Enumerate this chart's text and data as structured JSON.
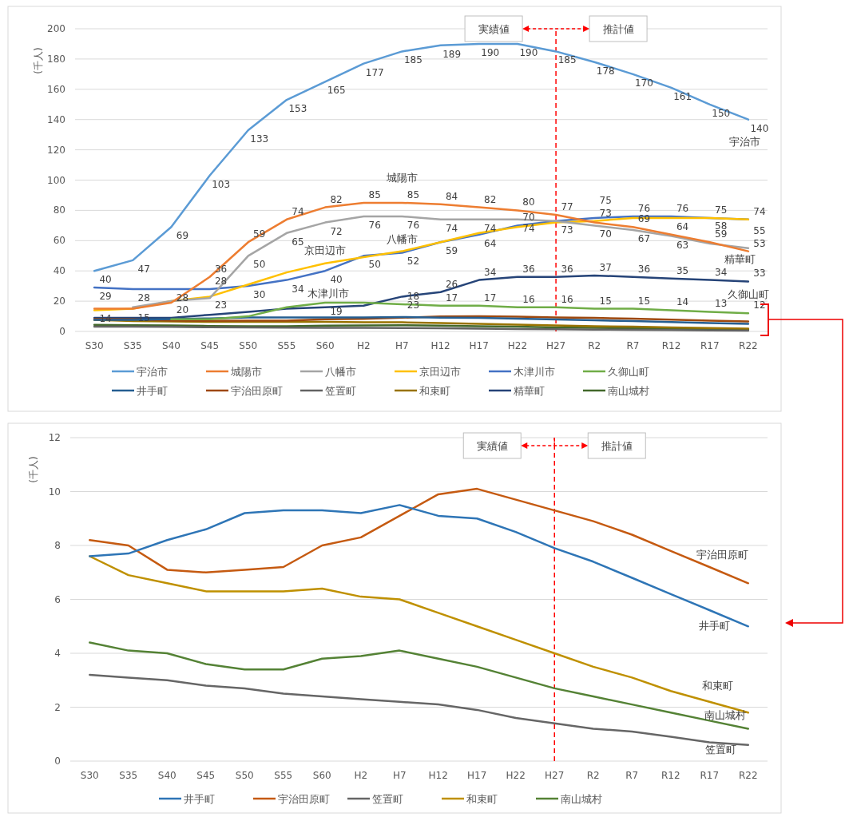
{
  "chart_data": [
    {
      "type": "line",
      "ylabel": "(千人)",
      "categories": [
        "S30",
        "S35",
        "S40",
        "S45",
        "S50",
        "S55",
        "S60",
        "H2",
        "H7",
        "H12",
        "H17",
        "H22",
        "H27",
        "R2",
        "R7",
        "R12",
        "R17",
        "R22"
      ],
      "ylim": [
        0,
        200
      ],
      "yticks": [
        0,
        20,
        40,
        60,
        80,
        100,
        120,
        140,
        160,
        180,
        200
      ],
      "grid": "y",
      "legend": "bottom",
      "marker": "none",
      "line_style": "solid",
      "series": [
        {
          "name": "宇治市",
          "color": "#5b9bd5",
          "values": [
            40,
            47,
            69,
            103,
            133,
            153,
            165,
            177,
            185,
            189,
            190,
            190,
            185,
            178,
            170,
            161,
            150,
            140
          ],
          "value_labels": [
            "40",
            "47",
            "69",
            "103",
            "133",
            "153",
            "165",
            "177",
            "185",
            "189",
            "190",
            "190",
            "185",
            "178",
            "170",
            "161",
            "150",
            "140"
          ]
        },
        {
          "name": "城陽市",
          "color": "#ed7d31",
          "values": [
            15,
            15,
            19,
            36,
            59,
            74,
            82,
            85,
            85,
            84,
            82,
            80,
            77,
            72,
            69,
            64,
            59,
            53
          ],
          "value_labels": [
            null,
            null,
            null,
            "36",
            "59",
            "74",
            "82",
            "85",
            "85",
            "84",
            "82",
            "80",
            "77",
            null,
            "69",
            "64",
            "59",
            "53"
          ]
        },
        {
          "name": "八幡市",
          "color": "#a5a5a5",
          "values": [
            null,
            16,
            20,
            22,
            50,
            65,
            72,
            76,
            76,
            74,
            74,
            74,
            73,
            70,
            67,
            63,
            58,
            55
          ],
          "value_labels": [
            null,
            null,
            null,
            null,
            "50",
            "65",
            "72",
            "76",
            "76",
            "74",
            "74",
            "74",
            null,
            "70",
            "67",
            "63",
            "58",
            "55"
          ]
        },
        {
          "name": "京田辺市",
          "color": "#ffc000",
          "values": [
            14,
            15,
            20,
            23,
            31,
            39,
            45,
            49,
            53,
            59,
            65,
            69,
            72,
            73,
            75,
            75,
            75,
            74
          ],
          "value_labels": [
            "14",
            "15",
            "20",
            "23",
            null,
            null,
            null,
            null,
            null,
            null,
            null,
            null,
            null,
            "73",
            null,
            null,
            null,
            null
          ]
        },
        {
          "name": "木津川市",
          "color": "#4472c4",
          "values": [
            29,
            28,
            28,
            28,
            30,
            34,
            40,
            50,
            52,
            59,
            64,
            70,
            73,
            75,
            76,
            76,
            75,
            74
          ],
          "value_labels": [
            "29",
            "28",
            "28",
            "28",
            "30",
            "34",
            "40",
            "50",
            "52",
            "59",
            "64",
            "70",
            "73",
            "75",
            "76",
            "76",
            "75",
            "74"
          ]
        },
        {
          "name": "久御山町",
          "color": "#70ad47",
          "values": [
            null,
            null,
            8,
            8,
            10,
            16,
            19,
            19,
            18,
            17,
            17,
            16,
            16,
            15,
            15,
            14,
            13,
            12
          ],
          "value_labels": [
            null,
            null,
            null,
            null,
            null,
            null,
            "19",
            null,
            "18",
            "17",
            "17",
            "16",
            "16",
            "15",
            "15",
            "14",
            "13",
            "12"
          ]
        },
        {
          "name": "井手町",
          "color": "#255e91",
          "values": [
            7.6,
            7.7,
            8.2,
            8.6,
            9.2,
            9.3,
            9.3,
            9.2,
            9.5,
            9.1,
            9.0,
            8.5,
            7.9,
            7.4,
            6.8,
            6.2,
            5.6,
            5.0
          ]
        },
        {
          "name": "宇治田原町",
          "color": "#9e480e",
          "values": [
            8.2,
            8.0,
            7.1,
            7.0,
            7.1,
            7.2,
            8.0,
            8.3,
            9.1,
            9.9,
            10.1,
            9.7,
            9.3,
            8.9,
            8.4,
            7.8,
            7.2,
            6.6
          ]
        },
        {
          "name": "笠置町",
          "color": "#636363",
          "values": [
            3.2,
            3.1,
            3.0,
            2.8,
            2.7,
            2.5,
            2.4,
            2.3,
            2.2,
            2.1,
            1.9,
            1.6,
            1.4,
            1.2,
            1.1,
            0.9,
            0.7,
            0.6
          ]
        },
        {
          "name": "和束町",
          "color": "#997300",
          "values": [
            7.6,
            6.9,
            6.6,
            6.3,
            6.3,
            6.3,
            6.4,
            6.1,
            6.0,
            5.5,
            5.0,
            4.5,
            4.0,
            3.5,
            3.1,
            2.6,
            2.2,
            1.8
          ]
        },
        {
          "name": "精華町",
          "color": "#264478",
          "values": [
            9,
            9,
            9,
            11,
            13,
            15,
            16,
            17,
            23,
            26,
            34,
            36,
            36,
            37,
            36,
            35,
            34,
            33
          ],
          "value_labels": [
            null,
            null,
            null,
            null,
            null,
            null,
            null,
            null,
            "23",
            "26",
            "34",
            "36",
            "36",
            "37",
            "36",
            "35",
            "34",
            "33"
          ]
        },
        {
          "name": "南山城村",
          "color": "#43682b",
          "values": [
            4.4,
            4.1,
            4.0,
            3.6,
            3.4,
            3.4,
            3.8,
            3.9,
            4.1,
            3.8,
            3.5,
            3.1,
            2.7,
            2.4,
            2.1,
            1.8,
            1.5,
            1.2
          ]
        }
      ],
      "ref_lines": [
        {
          "axis": "x",
          "value": "H27",
          "color": "#ff0000",
          "line_style": "dashed"
        }
      ],
      "annotations": [
        "実績値",
        "推計値"
      ]
    },
    {
      "type": "line",
      "ylabel": "(千人)",
      "categories": [
        "S30",
        "S35",
        "S40",
        "S45",
        "S50",
        "S55",
        "S60",
        "H2",
        "H7",
        "H12",
        "H17",
        "H22",
        "H27",
        "R2",
        "R7",
        "R12",
        "R17",
        "R22"
      ],
      "ylim": [
        0,
        12
      ],
      "yticks": [
        0,
        2,
        4,
        6,
        8,
        10,
        12
      ],
      "grid": "y",
      "legend": "bottom",
      "marker": "none",
      "line_style": "solid",
      "series": [
        {
          "name": "井手町",
          "color": "#2e75b6",
          "values": [
            7.6,
            7.7,
            8.2,
            8.6,
            9.2,
            9.3,
            9.3,
            9.2,
            9.5,
            9.1,
            9.0,
            8.5,
            7.9,
            7.4,
            6.8,
            6.2,
            5.6,
            5.0
          ]
        },
        {
          "name": "宇治田原町",
          "color": "#c55a11",
          "values": [
            8.2,
            8.0,
            7.1,
            7.0,
            7.1,
            7.2,
            8.0,
            8.3,
            9.1,
            9.9,
            10.1,
            9.7,
            9.3,
            8.9,
            8.4,
            7.8,
            7.2,
            6.6
          ]
        },
        {
          "name": "笠置町",
          "color": "#666666",
          "values": [
            3.2,
            3.1,
            3.0,
            2.8,
            2.7,
            2.5,
            2.4,
            2.3,
            2.2,
            2.1,
            1.9,
            1.6,
            1.4,
            1.2,
            1.1,
            0.9,
            0.7,
            0.6
          ]
        },
        {
          "name": "和束町",
          "color": "#bf9000",
          "values": [
            7.6,
            6.9,
            6.6,
            6.3,
            6.3,
            6.3,
            6.4,
            6.1,
            6.0,
            5.5,
            5.0,
            4.5,
            4.0,
            3.5,
            3.1,
            2.6,
            2.2,
            1.8
          ]
        },
        {
          "name": "南山城村",
          "color": "#548235",
          "values": [
            4.4,
            4.1,
            4.0,
            3.6,
            3.4,
            3.4,
            3.8,
            3.9,
            4.1,
            3.8,
            3.5,
            3.1,
            2.7,
            2.4,
            2.1,
            1.8,
            1.5,
            1.2
          ]
        }
      ],
      "ref_lines": [
        {
          "axis": "x",
          "value": "H27",
          "color": "#ff0000",
          "line_style": "dashed"
        }
      ],
      "annotations": [
        "実績値",
        "推計値"
      ]
    }
  ]
}
